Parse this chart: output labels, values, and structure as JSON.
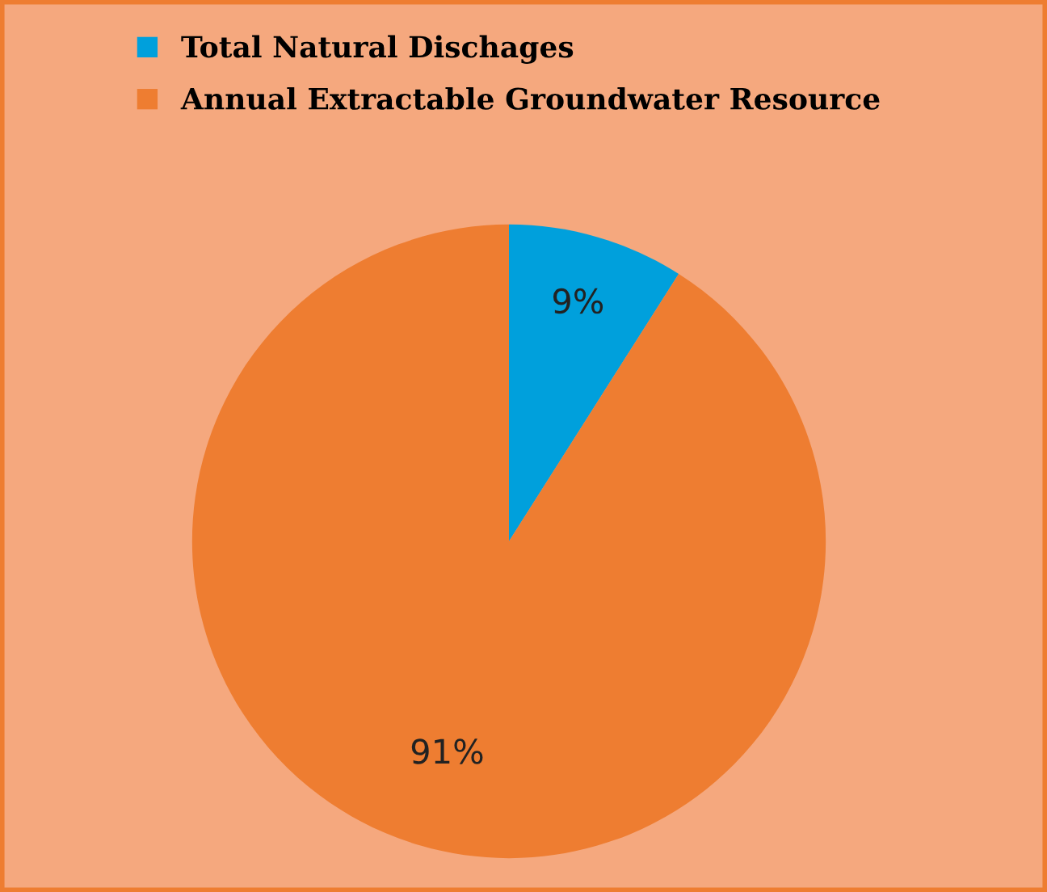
{
  "chart_data": {
    "type": "pie",
    "categories": [
      "Total Natural Dischages",
      "Annual Extractable Groundwater Resource"
    ],
    "values": [
      9,
      91
    ],
    "colors": [
      "#00a0dc",
      "#ee7d31"
    ],
    "value_labels": [
      "9%",
      "91%"
    ],
    "legend": "top"
  }
}
